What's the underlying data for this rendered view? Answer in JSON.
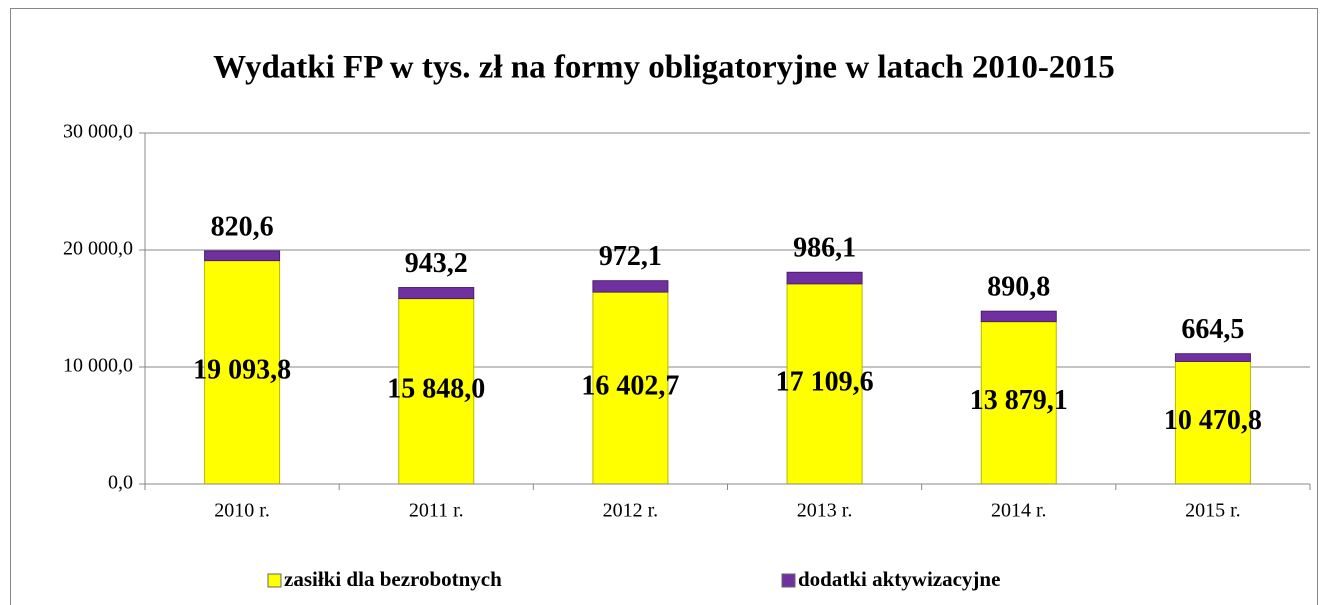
{
  "chart_data": {
    "type": "stacked_bar",
    "title": "Wydatki FP w tys. zł na formy obligatoryjne w latach 2010-2015",
    "categories": [
      "2010 r.",
      "2011 r.",
      "2012 r.",
      "2013 r.",
      "2014 r.",
      "2015 r."
    ],
    "series": [
      {
        "name": "zasiłki dla bezrobotnych",
        "color": "#ffff00",
        "values": [
          19093.8,
          15848.0,
          16402.7,
          17109.6,
          13879.1,
          10470.8
        ],
        "value_labels": [
          "19 093,8",
          "15 848,0",
          "16 402,7",
          "17 109,6",
          "13 879,1",
          "10 470,8"
        ]
      },
      {
        "name": "dodatki aktywizacyjne",
        "color": "#7030a0",
        "values": [
          820.6,
          943.2,
          972.1,
          986.1,
          890.8,
          664.5
        ],
        "value_labels": [
          "820,6",
          "943,2",
          "972,1",
          "986,1",
          "890,8",
          "664,5"
        ]
      }
    ],
    "ylim": [
      0,
      30000
    ],
    "yticks": [
      {
        "value": 0,
        "label": "0,0"
      },
      {
        "value": 10000,
        "label": "10 000,0"
      },
      {
        "value": 20000,
        "label": "20 000,0"
      },
      {
        "value": 30000,
        "label": "30 000,0"
      }
    ],
    "grid": true,
    "legend": "bottom"
  }
}
